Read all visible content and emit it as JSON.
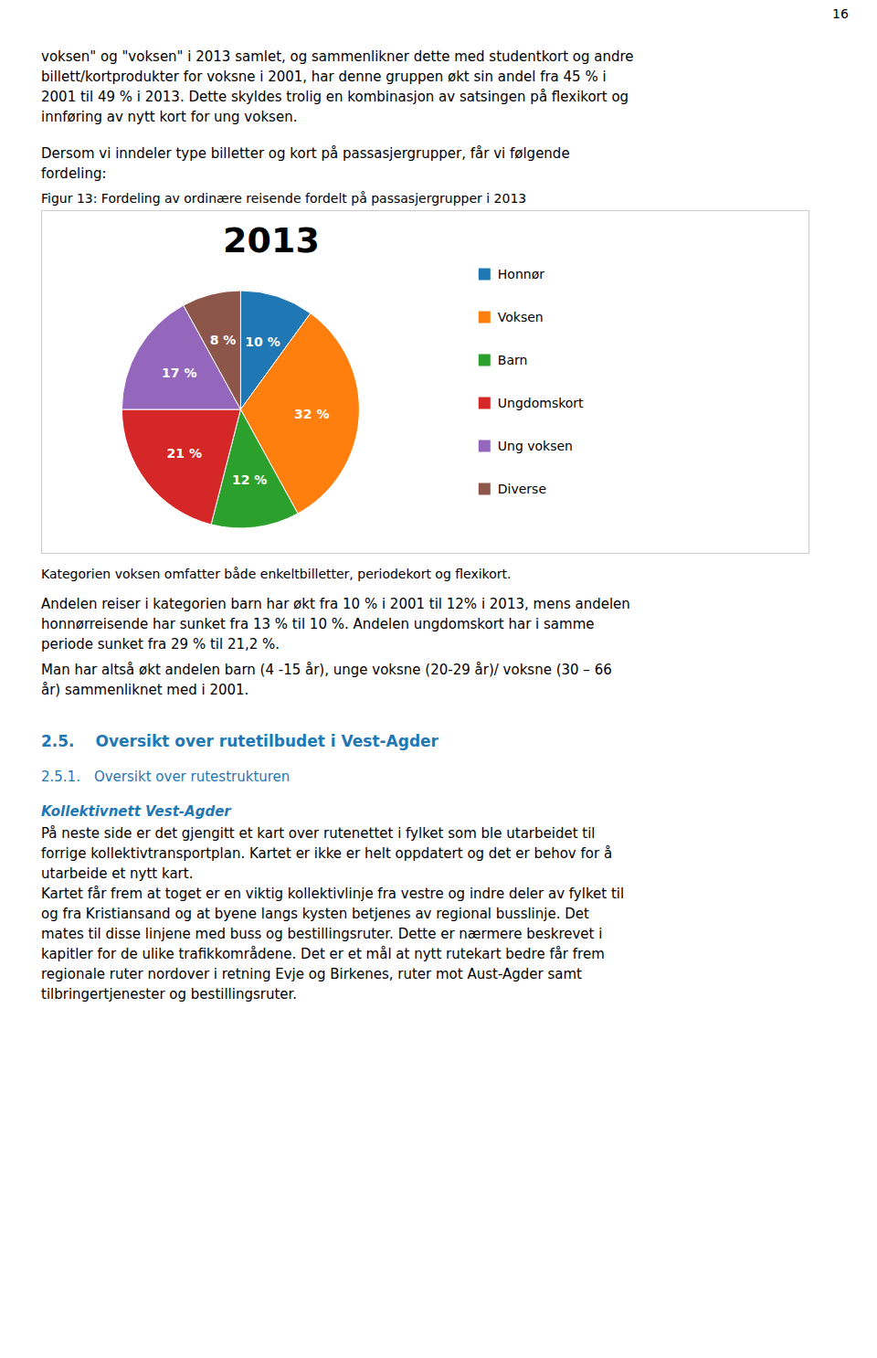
{
  "chart_data": {
    "type": "pie",
    "title": "2013",
    "categories": [
      "Honnør",
      "Voksen",
      "Barn",
      "Ungdomskort",
      "Ung voksen",
      "Diverse"
    ],
    "values": [
      10,
      32,
      12,
      21,
      17,
      8
    ],
    "value_labels": [
      "10 %",
      "32 %",
      "12 %",
      "21 %",
      "17 %",
      "8 %"
    ],
    "data_labels": true,
    "legend": "right"
  },
  "page": {
    "page_number": "16",
    "header": [
      "voksen\" og \"voksen\" i 2013 samlet, og sammenlikner dette med studentkort og andre",
      "billett/kortprodukter for voksne i 2001, har denne gruppen økt sin andel fra 45 % i",
      "2001 til 49 % i 2013. Dette skyldes trolig en kombinasjon av satsingen på flexikort og",
      "innføring av nytt kort for ung voksen."
    ],
    "intro": [
      "Dersom vi inndeler type billetter og kort på passasjergrupper, får vi følgende",
      "fordeling:"
    ],
    "figure_label": "Figur 13: Fordeling av ordinære reisende fordelt på passasjergrupper i 2013",
    "footer_text": "Kategorien voksen omfatter både enkeltbilletter, periodekort og flexikort.",
    "body1": [
      "Andelen reiser i kategorien barn har økt fra 10 % i 2001 til 12% i 2013, mens andelen",
      "honnørreisende har sunket fra 13 % til 10 %. Andelen ungdomskort har i samme",
      "periode sunket fra 29 % til 21,2 %."
    ],
    "body2": [
      "Man har altså økt andelen barn (4 -15 år), unge voksne (20-29 år)/ voksne (30 – 66",
      "år) sammenliknet med i 2001."
    ],
    "section_title": "2.5.   Oversikt over rutetilbudet i Vest-Agder",
    "subsection_title": "2.5.1. Oversikt over rutestrukturen",
    "kollektivnett_title": "Kollektivnett Vest-Agder",
    "kollektivnett_body": [
      "På neste side er det gjengitt et kart over rutenettet i fylket som ble utarbeidet til",
      "forrige kollektivtransportplan. Kartet er ikke er helt oppdatert og det er behov for å",
      "utarbeide et nytt kart.",
      "Kartet får frem at toget er en viktig kollektivlinje fra vestre og indre deler av fylket til",
      "og fra Kristiansand og at byene langs kysten betjenes av regional busslinje. Det",
      "mates til disse linjene med buss og bestillingsruter. Dette er nærmere beskrevet i",
      "kapitler for de ulike trafikkområdene. Det er et mål at nytt rutekart bedre får frem",
      "regionale ruter nordover i retning Evje og Birkenes, ruter mot Aust-Agder samt",
      "tilbringertjenester og bestillingsruter."
    ]
  }
}
